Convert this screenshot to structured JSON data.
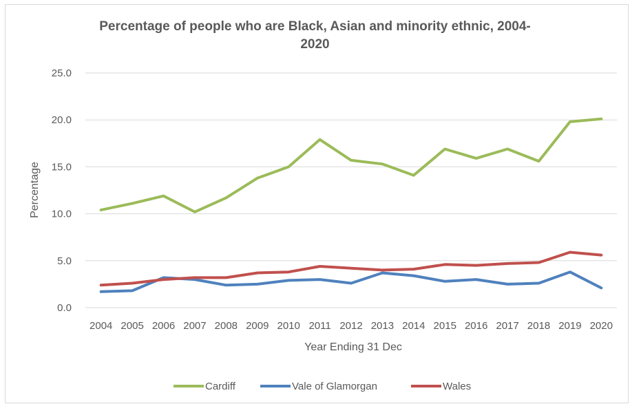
{
  "chart_data": {
    "type": "line",
    "title_line1": "Percentage of people who are Black, Asian and minority ethnic, 2004-",
    "title_line2": "2020",
    "xlabel": "Year Ending 31 Dec",
    "ylabel": "Percentage",
    "ylim": [
      0,
      25
    ],
    "yticks": [
      "0.0",
      "5.0",
      "10.0",
      "15.0",
      "20.0",
      "25.0"
    ],
    "grid": true,
    "legend_position": "bottom",
    "categories": [
      "2004",
      "2005",
      "2006",
      "2007",
      "2008",
      "2009",
      "2010",
      "2011",
      "2012",
      "2013",
      "2014",
      "2015",
      "2016",
      "2017",
      "2018",
      "2019",
      "2020"
    ],
    "series": [
      {
        "name": "Cardiff",
        "color": "#9bbb59",
        "values": [
          10.4,
          11.1,
          11.9,
          10.2,
          11.7,
          13.8,
          15.0,
          17.9,
          15.7,
          15.3,
          14.1,
          16.9,
          15.9,
          16.9,
          15.6,
          19.8,
          20.1
        ]
      },
      {
        "name": "Vale of Glamorgan",
        "color": "#4f81bd",
        "values": [
          1.7,
          1.8,
          3.2,
          3.0,
          2.4,
          2.5,
          2.9,
          3.0,
          2.6,
          3.7,
          3.4,
          2.8,
          3.0,
          2.5,
          2.6,
          3.8,
          2.1
        ]
      },
      {
        "name": "Wales",
        "color": "#c0504d",
        "values": [
          2.4,
          2.6,
          3.0,
          3.2,
          3.2,
          3.7,
          3.8,
          4.4,
          4.2,
          4.0,
          4.1,
          4.6,
          4.5,
          4.7,
          4.8,
          5.9,
          5.6
        ]
      }
    ]
  }
}
